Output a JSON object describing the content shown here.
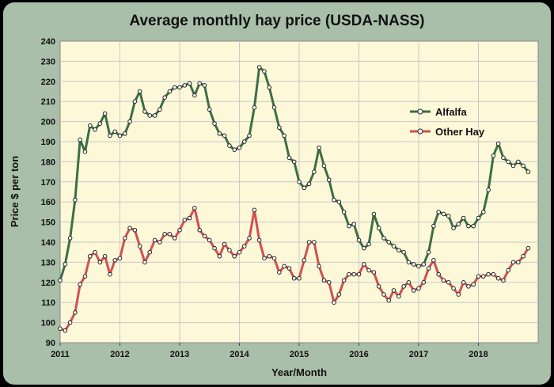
{
  "chart_data": {
    "type": "line",
    "title": "Average monthly hay price (USDA-NASS)",
    "xlabel": "Year/Month",
    "ylabel": "Price $ per ton",
    "ylim": [
      90,
      240
    ],
    "yticks": [
      90,
      100,
      110,
      120,
      130,
      140,
      150,
      160,
      170,
      180,
      190,
      200,
      210,
      220,
      230,
      240
    ],
    "xticks": [
      "2011",
      "2012",
      "2013",
      "2014",
      "2015",
      "2016",
      "2017",
      "2018"
    ],
    "start": "2011-01",
    "grid": true,
    "legend": "right",
    "colors": {
      "plot_bg": "#fdf8d8",
      "frame_bg": "#a9bfa9",
      "grid": "#c9c9c9"
    },
    "series": [
      {
        "name": "Alfalfa",
        "color": "#3c6e46",
        "values": [
          121,
          129,
          142,
          161,
          191,
          185,
          198,
          196,
          199,
          204,
          193,
          195,
          193,
          194,
          200,
          210,
          215,
          205,
          203,
          203,
          206,
          212,
          215,
          217,
          217,
          218,
          219,
          213,
          219,
          218,
          206,
          199,
          194,
          193,
          188,
          186,
          187,
          190,
          193,
          207,
          227,
          225,
          217,
          207,
          197,
          193,
          182,
          180,
          170,
          167,
          169,
          175,
          187,
          178,
          171,
          161,
          160,
          155,
          148,
          149,
          141,
          137,
          139,
          154,
          147,
          142,
          140,
          138,
          136,
          135,
          130,
          129,
          128,
          129,
          135,
          148,
          155,
          154,
          153,
          147,
          149,
          152,
          148,
          148,
          152,
          155,
          166,
          183,
          189,
          182,
          180,
          178,
          180,
          178,
          175
        ]
      },
      {
        "name": "Other Hay",
        "color": "#d05050",
        "values": [
          97,
          96,
          100,
          105,
          119,
          123,
          133,
          135,
          130,
          133,
          124,
          131,
          132,
          142,
          147,
          146,
          138,
          130,
          135,
          141,
          140,
          144,
          144,
          142,
          146,
          151,
          152,
          157,
          146,
          143,
          141,
          137,
          133,
          139,
          136,
          133,
          135,
          138,
          142,
          156,
          141,
          132,
          133,
          132,
          125,
          128,
          127,
          122,
          122,
          131,
          140,
          140,
          128,
          121,
          120,
          110,
          114,
          121,
          124,
          124,
          124,
          129,
          126,
          125,
          118,
          114,
          111,
          116,
          113,
          118,
          120,
          116,
          117,
          120,
          127,
          131,
          124,
          121,
          120,
          117,
          114,
          120,
          118,
          119,
          123,
          123,
          124,
          124,
          122,
          121,
          126,
          130,
          130,
          133,
          137
        ]
      }
    ]
  }
}
